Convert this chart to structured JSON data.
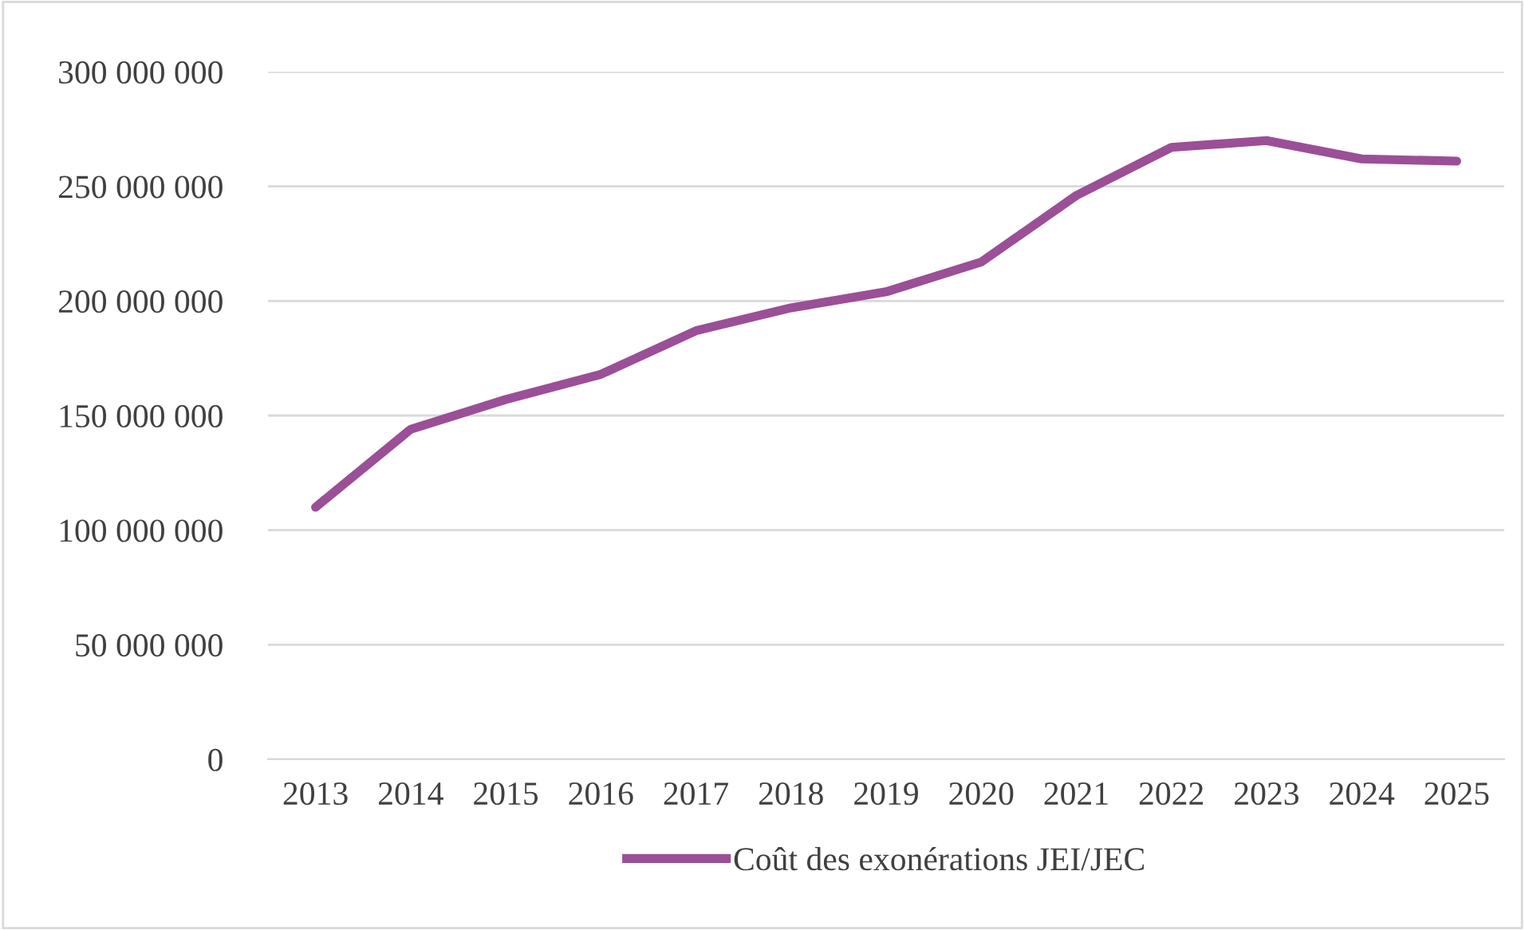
{
  "chart_data": {
    "type": "line",
    "categories": [
      "2013",
      "2014",
      "2015",
      "2016",
      "2017",
      "2018",
      "2019",
      "2020",
      "2021",
      "2022",
      "2023",
      "2024",
      "2025"
    ],
    "series": [
      {
        "name": "Coût des exonérations JEI/JEC",
        "color": "#9b4f96",
        "values": [
          110000000,
          144000000,
          157000000,
          168000000,
          187000000,
          197000000,
          204000000,
          217000000,
          246000000,
          267000000,
          270000000,
          262000000,
          261000000
        ]
      }
    ],
    "ylim": [
      0,
      300000000
    ],
    "yticks": [
      {
        "value": 0,
        "label": "0"
      },
      {
        "value": 50000000,
        "label": "50 000 000"
      },
      {
        "value": 100000000,
        "label": "100 000 000"
      },
      {
        "value": 150000000,
        "label": "150 000 000"
      },
      {
        "value": 200000000,
        "label": "200 000 000"
      },
      {
        "value": 250000000,
        "label": "250 000 000"
      },
      {
        "value": 300000000,
        "label": "300 000 000"
      }
    ],
    "grid": "y",
    "legend": "bottom",
    "marker": "none",
    "line_style": "solid"
  }
}
